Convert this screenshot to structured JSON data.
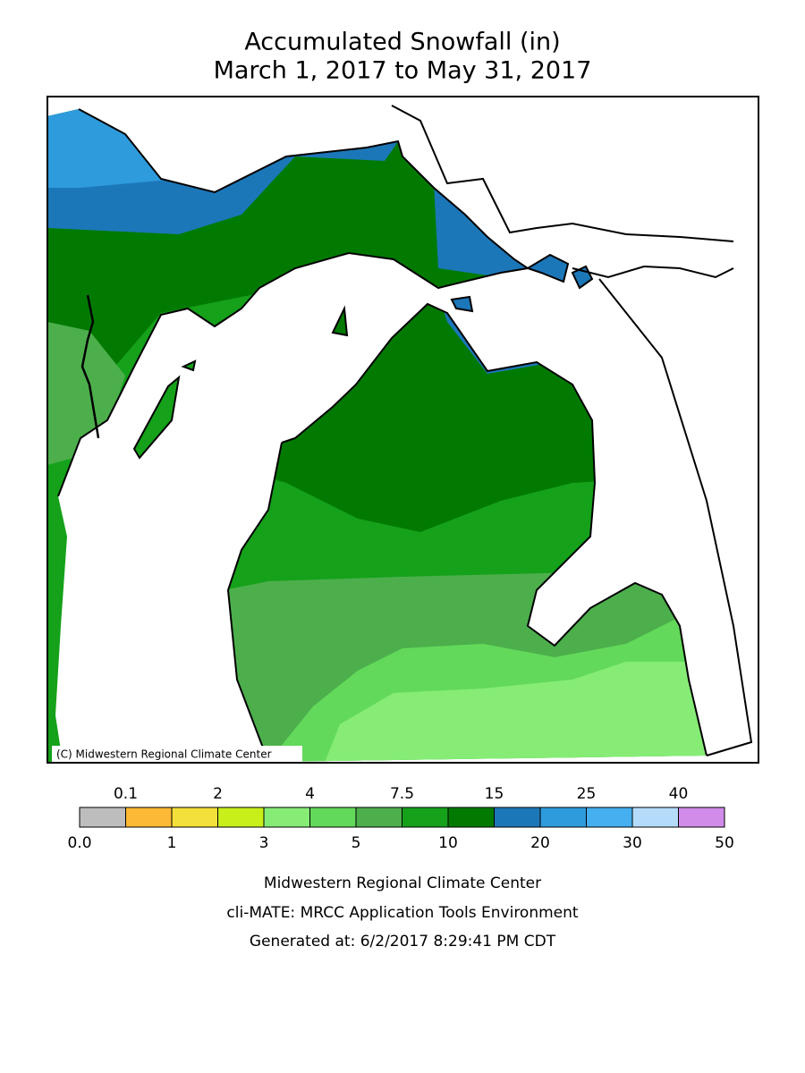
{
  "title": "Accumulated Snowfall (in)",
  "subtitle": "March 1, 2017 to May 31, 2017",
  "copyright": "(C) Midwestern Regional Climate Center",
  "legend": {
    "labels": [
      "0.0",
      "0.1",
      "1",
      "2",
      "3",
      "4",
      "5",
      "7.5",
      "10",
      "15",
      "20",
      "25",
      "30",
      "40",
      "50"
    ],
    "colors": [
      "#bdbdbd",
      "#fcb935",
      "#f4e03a",
      "#c8ef1a",
      "#86ec76",
      "#62d95a",
      "#4caf4c",
      "#15a11a",
      "#027a02",
      "#1c77b8",
      "#2e9bdc",
      "#45aff0",
      "#b4dcfa",
      "#d08ce8"
    ]
  },
  "footer": [
    "Midwestern Regional Climate Center",
    "cli-MATE: MRCC Application Tools Environment",
    "Generated at: 6/2/2017 8:29:41 PM CDT"
  ]
}
